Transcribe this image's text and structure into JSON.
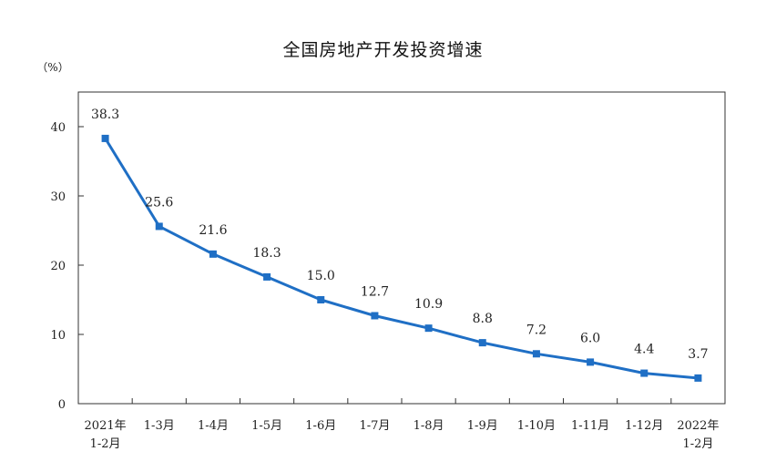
{
  "chart_data": {
    "type": "line",
    "title": "全国房地产开发投资增速",
    "unit_label": "（%）",
    "categories": [
      [
        "2021年",
        "1-2月"
      ],
      [
        "1-3月"
      ],
      [
        "1-4月"
      ],
      [
        "1-5月"
      ],
      [
        "1-6月"
      ],
      [
        "1-7月"
      ],
      [
        "1-8月"
      ],
      [
        "1-9月"
      ],
      [
        "1-10月"
      ],
      [
        "1-11月"
      ],
      [
        "1-12月"
      ],
      [
        "2022年",
        "1-2月"
      ]
    ],
    "values": [
      38.3,
      25.6,
      21.6,
      18.3,
      15.0,
      12.7,
      10.9,
      8.8,
      7.2,
      6.0,
      4.4,
      3.7
    ],
    "value_labels": [
      "38.3",
      "25.6",
      "21.6",
      "18.3",
      "15.0",
      "12.7",
      "10.9",
      "8.8",
      "7.2",
      "6.0",
      "4.4",
      "3.7"
    ],
    "yticks": [
      "0",
      "10",
      "20",
      "30",
      "40"
    ],
    "ylim": [
      0,
      45
    ],
    "grid": false,
    "legend": "none",
    "colors": {
      "series": "#1f6fc5",
      "axis": "#333333"
    }
  }
}
